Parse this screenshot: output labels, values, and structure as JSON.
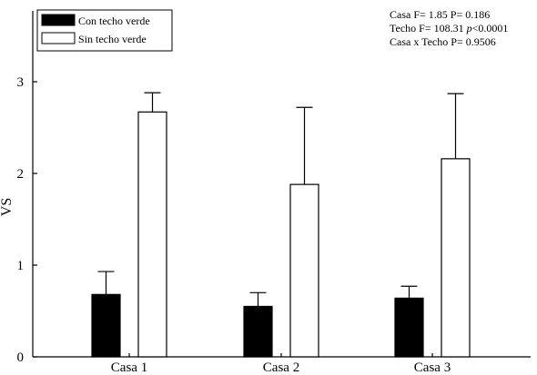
{
  "chart_data": {
    "type": "bar",
    "categories": [
      "Casa 1",
      "Casa 2",
      "Casa 3"
    ],
    "series": [
      {
        "name": "Con techo verde",
        "values": [
          0.68,
          0.55,
          0.64
        ],
        "errors": [
          0.25,
          0.15,
          0.13
        ],
        "color": "#000000"
      },
      {
        "name": "Sin techo verde",
        "values": [
          2.67,
          1.88,
          2.16
        ],
        "errors": [
          0.21,
          0.84,
          0.71
        ],
        "color": "#ffffff"
      }
    ],
    "xlabel": "",
    "ylabel": "VS",
    "ylim": [
      0,
      3.0
    ],
    "yticks": [
      0,
      1,
      2,
      3
    ],
    "legend_position": "top-left",
    "grid": false,
    "annotations": [
      {
        "segments": [
          {
            "text": "Casa F= 1.85 P= 0.186",
            "italic": false
          }
        ]
      },
      {
        "segments": [
          {
            "text": "Techo F= 108.31 ",
            "italic": false
          },
          {
            "text": "p",
            "italic": true
          },
          {
            "text": "<0.0001",
            "italic": false
          }
        ]
      },
      {
        "segments": [
          {
            "text": "Casa x Techo P= 0.9506",
            "italic": false
          }
        ]
      }
    ]
  }
}
